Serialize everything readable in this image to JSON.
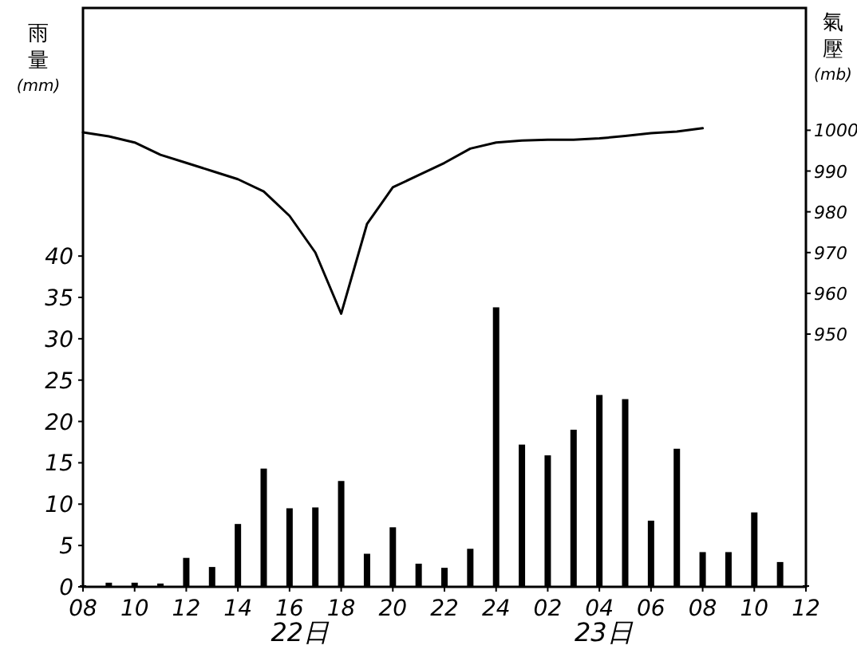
{
  "chart_data": {
    "type": "bar",
    "ylabel": "雨量$_{(mm)}$",
    "y2label": "氣壓$_{(mb)}$",
    "annotations": [
      "22日",
      "23日"
    ],
    "categories": [
      "08",
      null,
      "10",
      null,
      "12",
      null,
      "14",
      null,
      "16",
      null,
      "18",
      null,
      "20",
      null,
      "22",
      null,
      "24",
      null,
      "02",
      null,
      "04",
      null,
      "06",
      null,
      "08",
      null,
      "10",
      null,
      "12"
    ],
    "ylim": [
      0,
      70
    ],
    "yticks": [
      0,
      5,
      10,
      15,
      20,
      25,
      30,
      35,
      40
    ],
    "y2lim": [
      888,
      1030
    ],
    "y2ticks": [
      950,
      960,
      970,
      980,
      990,
      1000
    ],
    "series": [
      {
        "color": "#000000",
        "values": [
          0.2,
          0.5,
          0.5,
          0.4,
          3.5,
          2.4,
          7.6,
          14.3,
          9.5,
          9.6,
          12.8,
          4.0,
          7.2,
          2.8,
          2.3,
          4.6,
          33.8,
          17.2,
          15.9,
          19.0,
          23.2,
          22.7,
          8.0,
          16.7,
          4.2,
          4.2,
          9.0,
          3.0,
          0.2
        ]
      },
      {
        "type": "line",
        "axis": "y2",
        "color": "#000000",
        "values": [
          999.5,
          998.5,
          997,
          994,
          992,
          990,
          988,
          985,
          979,
          970,
          955,
          977,
          986,
          989,
          992,
          995.5,
          997,
          997.5,
          997.7,
          997.7,
          998,
          998.6,
          999.3,
          999.7,
          1000.5,
          null,
          null,
          null,
          null
        ]
      }
    ]
  }
}
